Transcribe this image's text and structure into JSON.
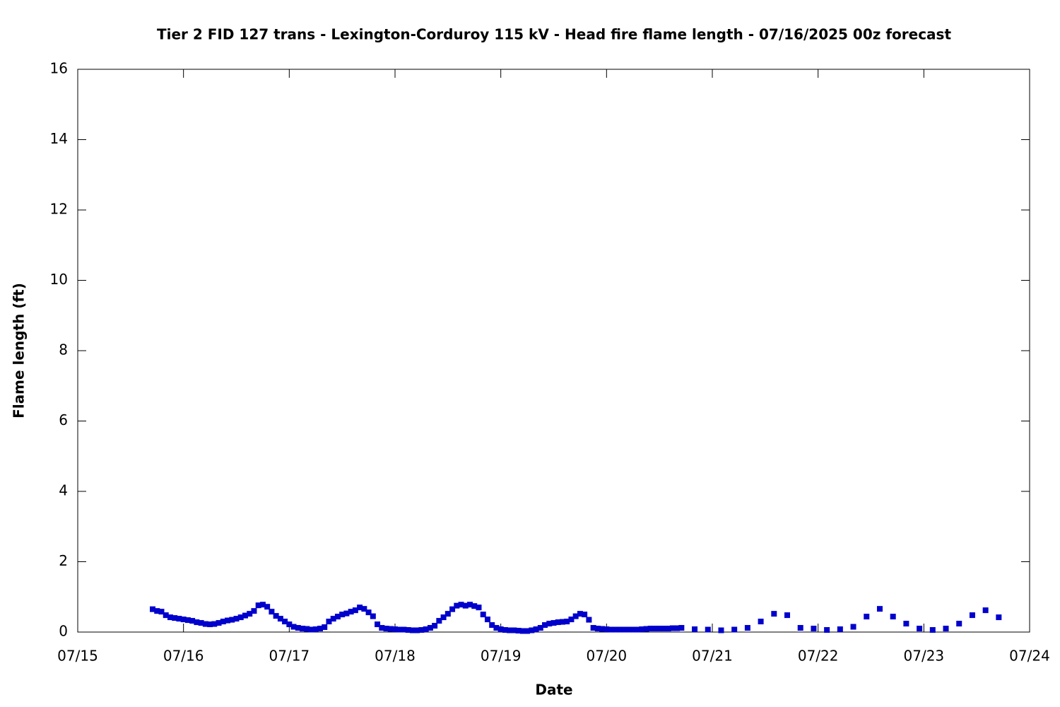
{
  "chart_data": {
    "type": "scatter",
    "title": "Tier 2 FID 127 trans - Lexington-Corduroy 115 kV - Head fire flame length - 07/16/2025 00z forecast",
    "x_label": "Date",
    "y_label": "Flame length (ft)",
    "color": "#0000cc",
    "xlim": [
      0,
      216
    ],
    "xticks": [
      {
        "value": 0,
        "label": "07/15"
      },
      {
        "value": 24,
        "label": "07/16"
      },
      {
        "value": 48,
        "label": "07/17"
      },
      {
        "value": 72,
        "label": "07/18"
      },
      {
        "value": 96,
        "label": "07/19"
      },
      {
        "value": 120,
        "label": "07/20"
      },
      {
        "value": 144,
        "label": "07/21"
      },
      {
        "value": 168,
        "label": "07/22"
      },
      {
        "value": 192,
        "label": "07/23"
      },
      {
        "value": 216,
        "label": "07/24"
      }
    ],
    "ylim": [
      0,
      16
    ],
    "yticks": [
      0,
      2,
      4,
      6,
      8,
      10,
      12,
      14,
      16
    ],
    "grid": false,
    "x": [
      17,
      18,
      19,
      20,
      21,
      22,
      23,
      24,
      25,
      26,
      27,
      28,
      29,
      30,
      31,
      32,
      33,
      34,
      35,
      36,
      37,
      38,
      39,
      40,
      41,
      42,
      43,
      44,
      45,
      46,
      47,
      48,
      49,
      50,
      51,
      52,
      53,
      54,
      55,
      56,
      57,
      58,
      59,
      60,
      61,
      62,
      63,
      64,
      65,
      66,
      67,
      68,
      69,
      70,
      71,
      72,
      73,
      74,
      75,
      76,
      77,
      78,
      79,
      80,
      81,
      82,
      83,
      84,
      85,
      86,
      87,
      88,
      89,
      90,
      91,
      92,
      93,
      94,
      95,
      96,
      97,
      98,
      99,
      100,
      101,
      102,
      103,
      104,
      105,
      106,
      107,
      108,
      109,
      110,
      111,
      112,
      113,
      114,
      115,
      116,
      117,
      118,
      119,
      120,
      121,
      122,
      123,
      124,
      125,
      126,
      127,
      128,
      129,
      130,
      131,
      132,
      133,
      134,
      135,
      136,
      137,
      140,
      143,
      146,
      149,
      152,
      155,
      158,
      161,
      164,
      167,
      170,
      173,
      176,
      179,
      182,
      185,
      188,
      191,
      194,
      197,
      200,
      203,
      206,
      209
    ],
    "values": [
      0.65,
      0.6,
      0.58,
      0.48,
      0.42,
      0.4,
      0.38,
      0.36,
      0.34,
      0.32,
      0.28,
      0.26,
      0.23,
      0.22,
      0.23,
      0.26,
      0.3,
      0.33,
      0.35,
      0.38,
      0.42,
      0.47,
      0.52,
      0.6,
      0.76,
      0.78,
      0.72,
      0.58,
      0.46,
      0.38,
      0.3,
      0.22,
      0.15,
      0.12,
      0.1,
      0.09,
      0.07,
      0.08,
      0.1,
      0.14,
      0.3,
      0.38,
      0.44,
      0.5,
      0.53,
      0.58,
      0.62,
      0.7,
      0.66,
      0.56,
      0.45,
      0.22,
      0.12,
      0.1,
      0.09,
      0.08,
      0.07,
      0.07,
      0.06,
      0.05,
      0.05,
      0.06,
      0.08,
      0.12,
      0.18,
      0.32,
      0.42,
      0.52,
      0.65,
      0.75,
      0.78,
      0.75,
      0.78,
      0.74,
      0.7,
      0.5,
      0.36,
      0.2,
      0.12,
      0.08,
      0.06,
      0.05,
      0.05,
      0.04,
      0.03,
      0.03,
      0.05,
      0.08,
      0.12,
      0.2,
      0.24,
      0.26,
      0.28,
      0.29,
      0.3,
      0.36,
      0.45,
      0.52,
      0.5,
      0.35,
      0.12,
      0.1,
      0.09,
      0.08,
      0.07,
      0.07,
      0.07,
      0.07,
      0.07,
      0.07,
      0.07,
      0.08,
      0.09,
      0.1,
      0.1,
      0.1,
      0.1,
      0.1,
      0.11,
      0.11,
      0.12,
      0.08,
      0.07,
      0.05,
      0.07,
      0.12,
      0.3,
      0.52,
      0.48,
      0.12,
      0.1,
      0.06,
      0.08,
      0.15,
      0.44,
      0.66,
      0.44,
      0.24,
      0.1,
      0.06,
      0.1,
      0.24,
      0.48,
      0.62,
      0.42
    ]
  }
}
